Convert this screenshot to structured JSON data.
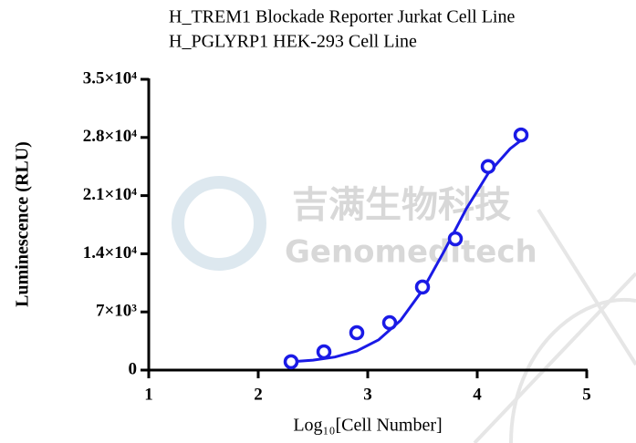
{
  "chart_data": {
    "type": "scatter",
    "title": "H_TREM1 Blockade Reporter Jurkat Cell Line",
    "subtitle": "H_PGLYRP1 HEK-293 Cell Line",
    "watermark": [
      "吉满生物科技",
      "Genomeditech"
    ],
    "x_label": "Log₁₀[Cell Number]",
    "y_label": "Luminescence (RLU)",
    "xlim": [
      1,
      5
    ],
    "xticks": [
      1,
      2,
      3,
      4,
      5
    ],
    "ylim": [
      0,
      35000
    ],
    "yticks": [
      0,
      {
        "value": 7000,
        "label": "7×10³"
      },
      {
        "value": 14000,
        "label": "1.4×10⁴"
      },
      {
        "value": 21000,
        "label": "2.1×10⁴"
      },
      {
        "value": 28000,
        "label": "2.8×10⁴"
      },
      {
        "value": 35000,
        "label": "3.5×10⁴"
      }
    ],
    "color": "#1a1ae6",
    "x": [
      2.3,
      2.6,
      2.9,
      3.2,
      3.5,
      3.8,
      4.1,
      4.4
    ],
    "values": [
      1000,
      2200,
      4500,
      5700,
      10000,
      15800,
      24500,
      28300
    ],
    "fit": {
      "x": [
        2.3,
        2.5,
        2.7,
        2.9,
        3.1,
        3.3,
        3.5,
        3.7,
        3.9,
        4.1,
        4.3,
        4.4
      ],
      "values": [
        997,
        1191,
        1570,
        2300,
        3645,
        5983,
        9613,
        14366,
        19409,
        23671,
        26635,
        27653
      ]
    }
  }
}
